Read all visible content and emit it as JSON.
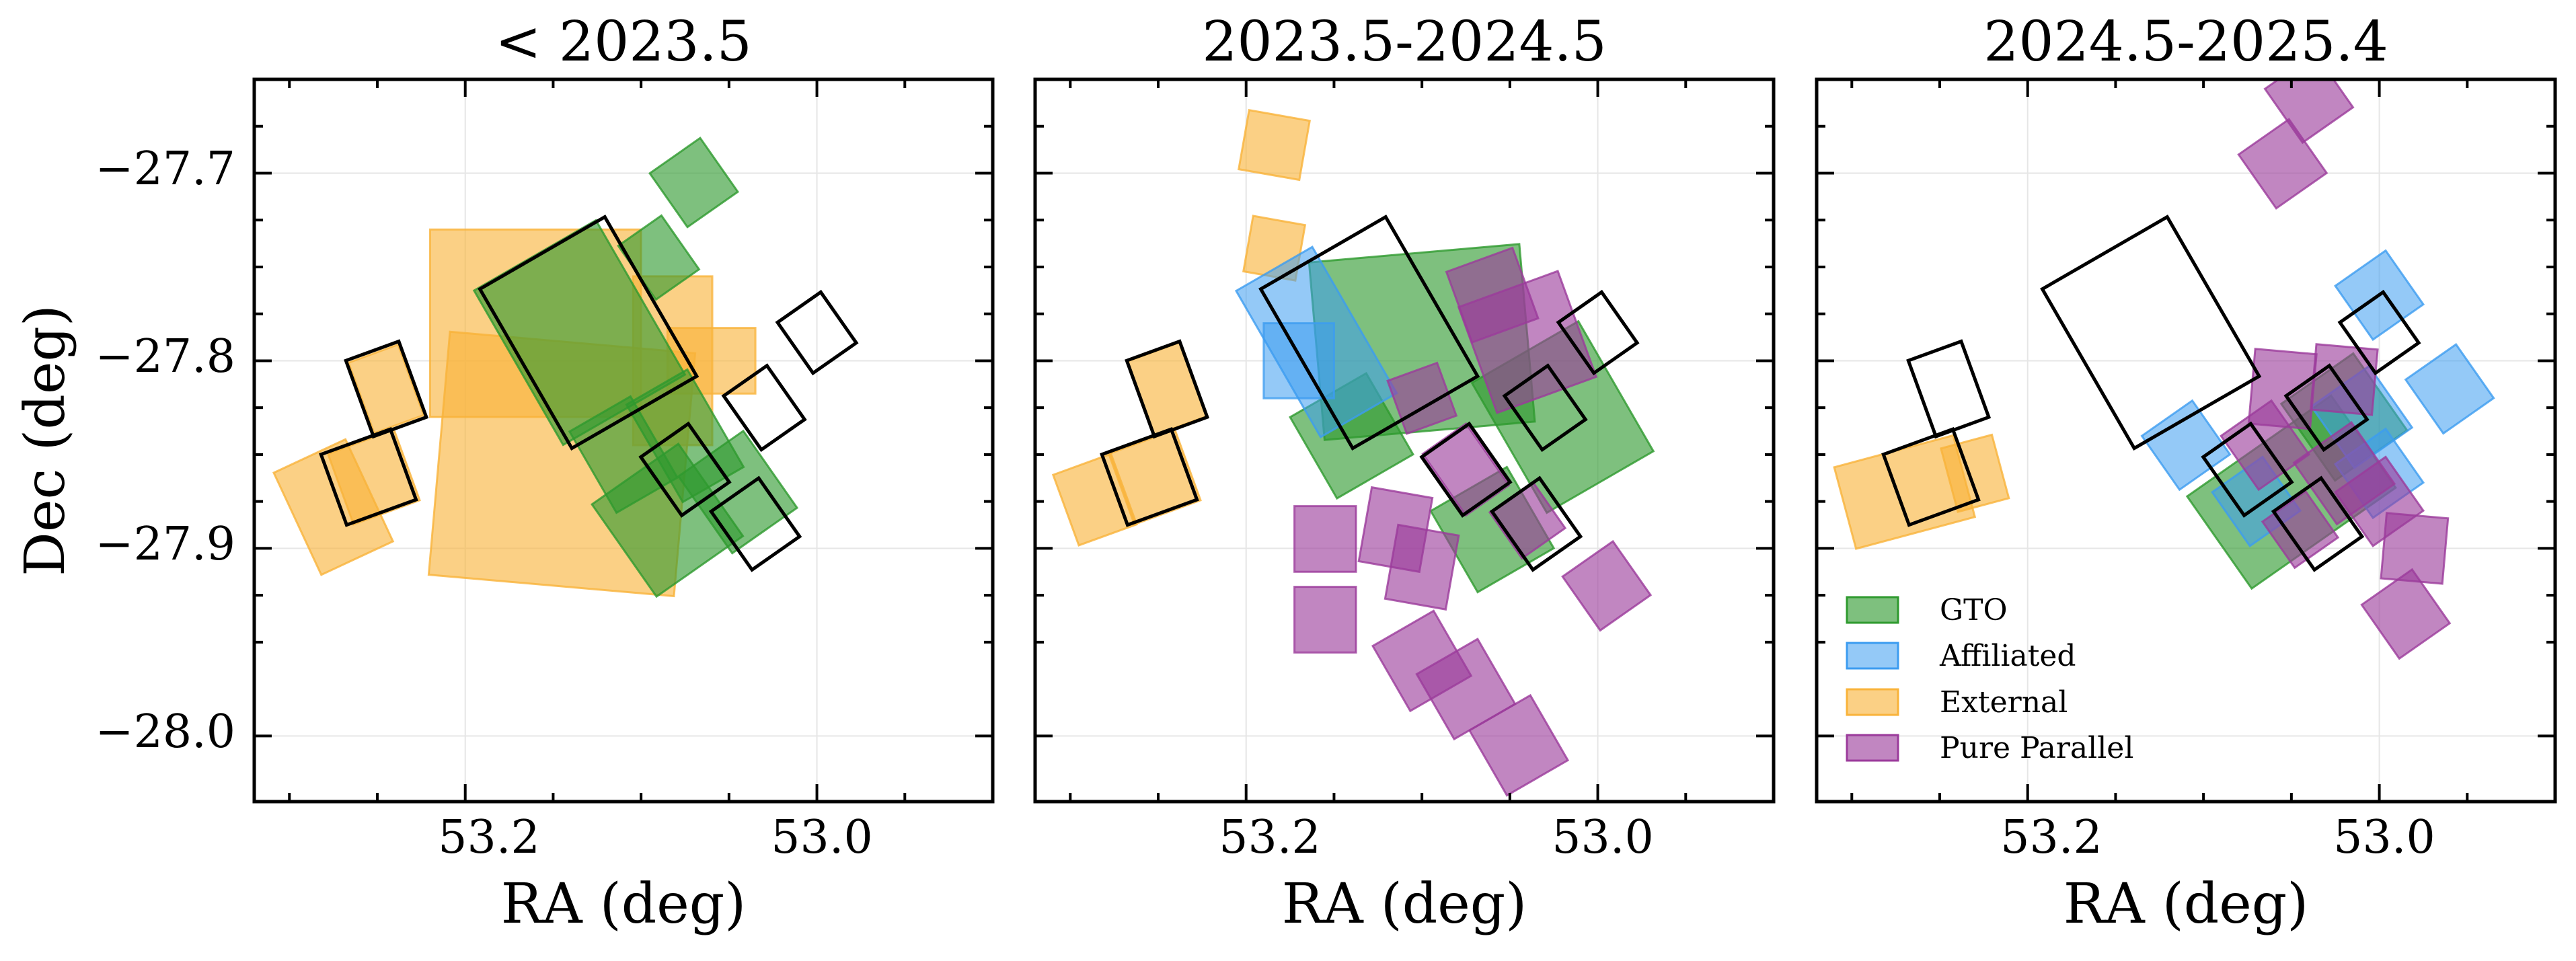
{
  "chart_data": {
    "type": "footprint-map",
    "ylabel": "Dec (deg)",
    "xlabel": "RA (deg)",
    "xlim": [
      53.32,
      52.9
    ],
    "ylim": [
      -28.035,
      -27.65
    ],
    "xticks": [
      {
        "value": 53.2,
        "label": "53.2"
      },
      {
        "value": 53.0,
        "label": "53.0"
      }
    ],
    "yticks": [
      {
        "value": -27.7,
        "label": "−27.7"
      },
      {
        "value": -27.8,
        "label": "−27.8"
      },
      {
        "value": -27.9,
        "label": "−27.9"
      },
      {
        "value": -28.0,
        "label": "−28.0"
      }
    ],
    "categories": [
      {
        "key": "gto",
        "name": "GTO",
        "color": "#2e9a2e"
      },
      {
        "key": "affiliated",
        "name": "Affiliated",
        "color": "#3c9cf0"
      },
      {
        "key": "external",
        "name": "External",
        "color": "#f9b33a"
      },
      {
        "key": "pure",
        "name": "Pure Parallel",
        "color": "#9b3b9b"
      }
    ],
    "outlines": [
      {
        "ra": 53.13,
        "dec": -27.785,
        "w": 0.082,
        "h": 0.098,
        "angle": -30
      },
      {
        "ra": 53.245,
        "dec": -27.815,
        "w": 0.032,
        "h": 0.043,
        "angle": -20
      },
      {
        "ra": 53.255,
        "dec": -27.862,
        "w": 0.042,
        "h": 0.04,
        "angle": -20
      },
      {
        "ra": 53.075,
        "dec": -27.858,
        "w": 0.033,
        "h": 0.038,
        "angle": -35
      },
      {
        "ra": 53.035,
        "dec": -27.887,
        "w": 0.033,
        "h": 0.038,
        "angle": -35
      },
      {
        "ra": 53.0,
        "dec": -27.785,
        "w": 0.03,
        "h": 0.033,
        "angle": -35
      },
      {
        "ra": 53.03,
        "dec": -27.825,
        "w": 0.03,
        "h": 0.035,
        "angle": -35
      }
    ],
    "panels": [
      {
        "title": "< 2023.5",
        "patches": [
          {
            "cat": "external",
            "ra": 53.145,
            "dec": -27.855,
            "w": 0.14,
            "h": 0.13,
            "angle": 5
          },
          {
            "cat": "external",
            "ra": 53.16,
            "dec": -27.78,
            "w": 0.12,
            "h": 0.1,
            "angle": 0
          },
          {
            "cat": "external",
            "ra": 53.082,
            "dec": -27.8,
            "w": 0.045,
            "h": 0.09,
            "angle": 0
          },
          {
            "cat": "external",
            "ra": 53.275,
            "dec": -27.878,
            "w": 0.045,
            "h": 0.06,
            "angle": -25
          },
          {
            "cat": "external",
            "ra": 53.245,
            "dec": -27.815,
            "w": 0.03,
            "h": 0.04,
            "angle": -20
          },
          {
            "cat": "external",
            "ra": 53.252,
            "dec": -27.862,
            "w": 0.04,
            "h": 0.04,
            "angle": -20
          },
          {
            "cat": "external",
            "ra": 53.06,
            "dec": -27.8,
            "w": 0.05,
            "h": 0.035,
            "angle": 0
          },
          {
            "cat": "gto",
            "ra": 53.085,
            "dec": -27.885,
            "w": 0.06,
            "h": 0.06,
            "angle": -35
          },
          {
            "cat": "gto",
            "ra": 53.045,
            "dec": -27.87,
            "w": 0.045,
            "h": 0.05,
            "angle": -35
          },
          {
            "cat": "gto",
            "ra": 53.07,
            "dec": -27.705,
            "w": 0.035,
            "h": 0.035,
            "angle": -35
          },
          {
            "cat": "gto",
            "ra": 53.09,
            "dec": -27.745,
            "w": 0.03,
            "h": 0.035,
            "angle": -35
          },
          {
            "cat": "gto",
            "ra": 53.135,
            "dec": -27.785,
            "w": 0.08,
            "h": 0.095,
            "angle": -30
          },
          {
            "cat": "gto",
            "ra": 53.11,
            "dec": -27.85,
            "w": 0.04,
            "h": 0.05,
            "angle": -30
          },
          {
            "cat": "gto",
            "ra": 53.075,
            "dec": -27.84,
            "w": 0.04,
            "h": 0.06,
            "angle": -30
          }
        ]
      },
      {
        "title": "2023.5-2024.5",
        "patches": [
          {
            "cat": "gto",
            "ra": 53.1,
            "dec": -27.79,
            "w": 0.12,
            "h": 0.095,
            "angle": -5
          },
          {
            "cat": "gto",
            "ra": 53.02,
            "dec": -27.83,
            "w": 0.07,
            "h": 0.08,
            "angle": -30
          },
          {
            "cat": "gto",
            "ra": 53.06,
            "dec": -27.89,
            "w": 0.05,
            "h": 0.05,
            "angle": -30
          },
          {
            "cat": "gto",
            "ra": 53.14,
            "dec": -27.84,
            "w": 0.05,
            "h": 0.05,
            "angle": -30
          },
          {
            "cat": "external",
            "ra": 53.184,
            "dec": -27.685,
            "w": 0.035,
            "h": 0.032,
            "angle": 10
          },
          {
            "cat": "external",
            "ra": 53.184,
            "dec": -27.74,
            "w": 0.03,
            "h": 0.03,
            "angle": 10
          },
          {
            "cat": "external",
            "ra": 53.245,
            "dec": -27.815,
            "w": 0.032,
            "h": 0.042,
            "angle": -20
          },
          {
            "cat": "external",
            "ra": 53.252,
            "dec": -27.862,
            "w": 0.04,
            "h": 0.04,
            "angle": -20
          },
          {
            "cat": "external",
            "ra": 53.286,
            "dec": -27.874,
            "w": 0.035,
            "h": 0.04,
            "angle": -20
          },
          {
            "cat": "affiliated",
            "ra": 53.16,
            "dec": -27.79,
            "w": 0.05,
            "h": 0.09,
            "angle": -30
          },
          {
            "cat": "affiliated",
            "ra": 53.17,
            "dec": -27.8,
            "w": 0.04,
            "h": 0.04,
            "angle": 0
          },
          {
            "cat": "pure",
            "ra": 53.04,
            "dec": -27.79,
            "w": 0.06,
            "h": 0.06,
            "angle": -20
          },
          {
            "cat": "pure",
            "ra": 53.06,
            "dec": -27.765,
            "w": 0.04,
            "h": 0.04,
            "angle": -20
          },
          {
            "cat": "pure",
            "ra": 53.1,
            "dec": -27.82,
            "w": 0.03,
            "h": 0.03,
            "angle": -20
          },
          {
            "cat": "pure",
            "ra": 53.075,
            "dec": -27.858,
            "w": 0.03,
            "h": 0.04,
            "angle": -35
          },
          {
            "cat": "pure",
            "ra": 53.04,
            "dec": -27.885,
            "w": 0.03,
            "h": 0.03,
            "angle": -35
          },
          {
            "cat": "pure",
            "ra": 53.115,
            "dec": -27.89,
            "w": 0.035,
            "h": 0.04,
            "angle": 10
          },
          {
            "cat": "pure",
            "ra": 53.1,
            "dec": -27.91,
            "w": 0.035,
            "h": 0.04,
            "angle": 10
          },
          {
            "cat": "pure",
            "ra": 53.155,
            "dec": -27.895,
            "w": 0.035,
            "h": 0.035,
            "angle": 0
          },
          {
            "cat": "pure",
            "ra": 53.155,
            "dec": -27.938,
            "w": 0.035,
            "h": 0.035,
            "angle": 0
          },
          {
            "cat": "pure",
            "ra": 53.1,
            "dec": -27.96,
            "w": 0.04,
            "h": 0.04,
            "angle": -30
          },
          {
            "cat": "pure",
            "ra": 53.075,
            "dec": -27.975,
            "w": 0.04,
            "h": 0.04,
            "angle": -30
          },
          {
            "cat": "pure",
            "ra": 53.045,
            "dec": -28.005,
            "w": 0.04,
            "h": 0.04,
            "angle": -30
          },
          {
            "cat": "pure",
            "ra": 52.995,
            "dec": -27.92,
            "w": 0.035,
            "h": 0.035,
            "angle": -35
          }
        ]
      },
      {
        "title": "2024.5-2025.4",
        "showLegend": true,
        "patches": [
          {
            "cat": "gto",
            "ra": 53.05,
            "dec": -27.87,
            "w": 0.1,
            "h": 0.06,
            "angle": -35
          },
          {
            "cat": "gto",
            "ra": 53.02,
            "dec": -27.83,
            "w": 0.05,
            "h": 0.05,
            "angle": -35
          },
          {
            "cat": "affiliated",
            "ra": 53.0,
            "dec": -27.765,
            "w": 0.035,
            "h": 0.035,
            "angle": -35
          },
          {
            "cat": "affiliated",
            "ra": 52.96,
            "dec": -27.815,
            "w": 0.035,
            "h": 0.035,
            "angle": -35
          },
          {
            "cat": "affiliated",
            "ra": 53.01,
            "dec": -27.83,
            "w": 0.04,
            "h": 0.04,
            "angle": -35
          },
          {
            "cat": "affiliated",
            "ra": 53.11,
            "dec": -27.845,
            "w": 0.035,
            "h": 0.035,
            "angle": -35
          },
          {
            "cat": "affiliated",
            "ra": 53.07,
            "dec": -27.875,
            "w": 0.035,
            "h": 0.035,
            "angle": -35
          },
          {
            "cat": "affiliated",
            "ra": 53.0,
            "dec": -27.86,
            "w": 0.035,
            "h": 0.035,
            "angle": -35
          },
          {
            "cat": "external",
            "ra": 53.27,
            "dec": -27.87,
            "w": 0.07,
            "h": 0.045,
            "angle": -15
          },
          {
            "cat": "external",
            "ra": 53.23,
            "dec": -27.86,
            "w": 0.03,
            "h": 0.035,
            "angle": -15
          },
          {
            "cat": "pure",
            "ra": 53.04,
            "dec": -27.66,
            "w": 0.035,
            "h": 0.035,
            "angle": -35
          },
          {
            "cat": "pure",
            "ra": 53.055,
            "dec": -27.695,
            "w": 0.035,
            "h": 0.035,
            "angle": -35
          },
          {
            "cat": "pure",
            "ra": 53.055,
            "dec": -27.815,
            "w": 0.035,
            "h": 0.04,
            "angle": 5
          },
          {
            "cat": "pure",
            "ra": 53.02,
            "dec": -27.81,
            "w": 0.035,
            "h": 0.035,
            "angle": 5
          },
          {
            "cat": "pure",
            "ra": 53.02,
            "dec": -27.86,
            "w": 0.04,
            "h": 0.04,
            "angle": -35
          },
          {
            "cat": "pure",
            "ra": 53.065,
            "dec": -27.845,
            "w": 0.035,
            "h": 0.035,
            "angle": -35
          },
          {
            "cat": "pure",
            "ra": 53.0,
            "dec": -27.875,
            "w": 0.035,
            "h": 0.035,
            "angle": -35
          },
          {
            "cat": "pure",
            "ra": 53.045,
            "dec": -27.89,
            "w": 0.03,
            "h": 0.03,
            "angle": -35
          },
          {
            "cat": "pure",
            "ra": 52.98,
            "dec": -27.9,
            "w": 0.035,
            "h": 0.035,
            "angle": 5
          },
          {
            "cat": "pure",
            "ra": 52.985,
            "dec": -27.935,
            "w": 0.035,
            "h": 0.035,
            "angle": -35
          }
        ]
      }
    ]
  }
}
